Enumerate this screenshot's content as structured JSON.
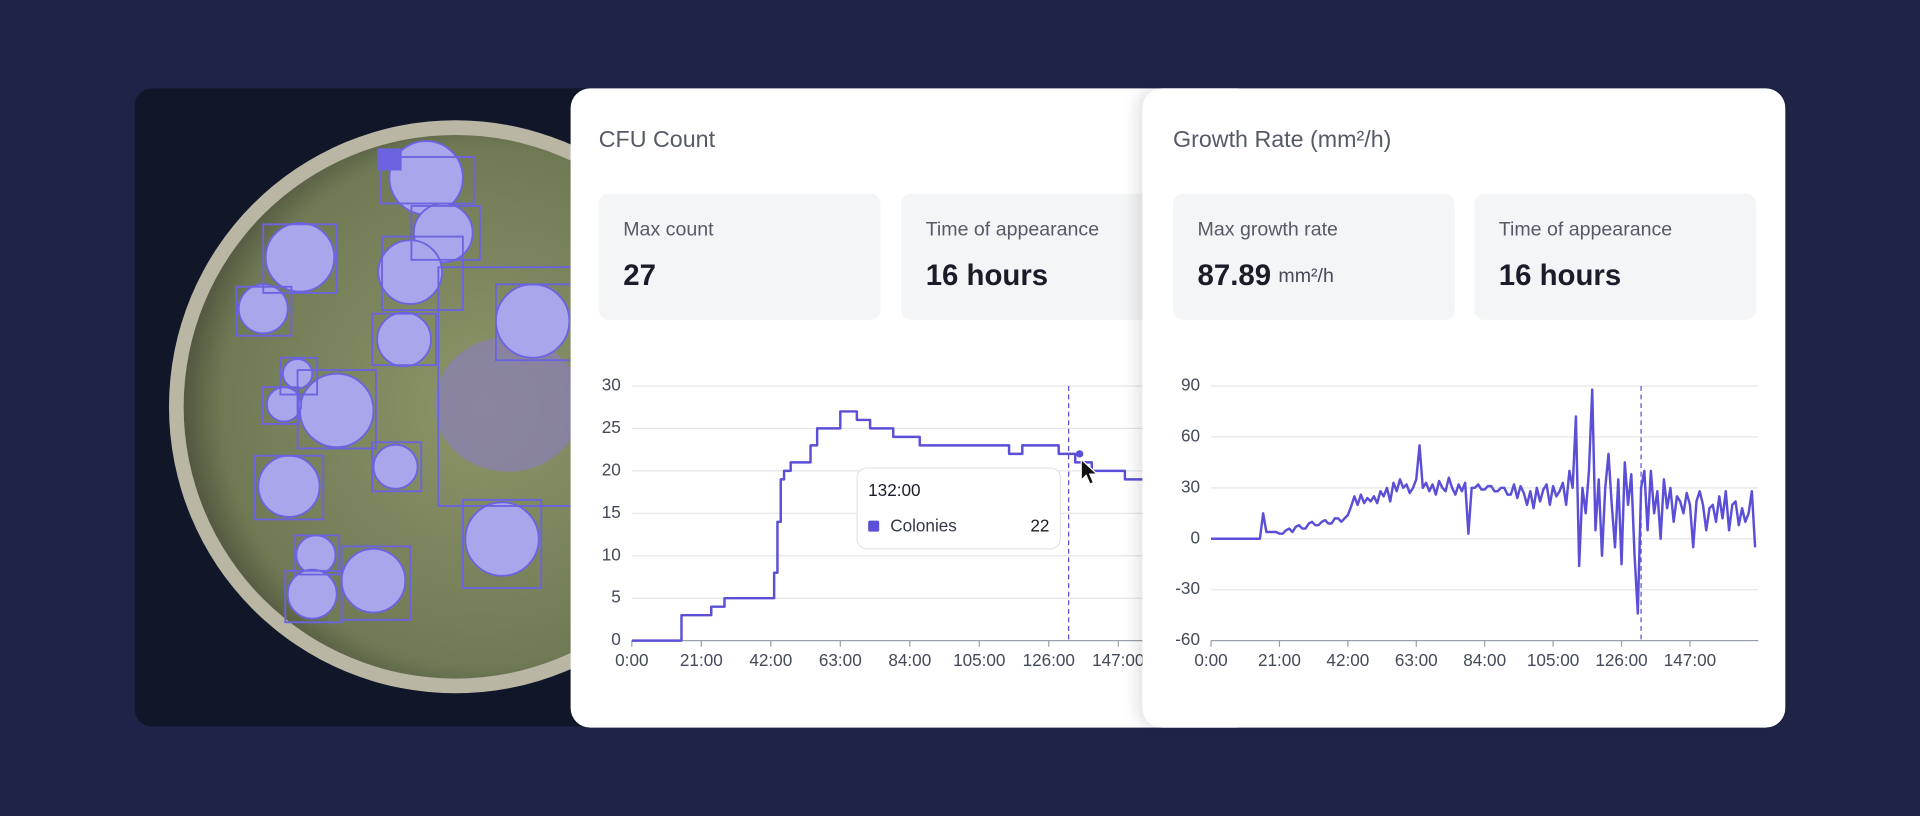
{
  "panels": [
    {
      "title": "CFU Count",
      "stats": [
        {
          "label": "Max count",
          "value": 27
        },
        {
          "label": "Time of appearance",
          "value": "16 hours"
        }
      ]
    },
    {
      "title": "Growth Rate (mm²/h)",
      "stats": [
        {
          "label": "Max growth rate",
          "value": 87.89,
          "unit": "mm²/h"
        },
        {
          "label": "Time of appearance",
          "value": "16 hours"
        }
      ]
    }
  ],
  "chart_data": [
    {
      "type": "line",
      "step": true,
      "x": [
        0,
        14,
        15,
        23,
        24,
        27,
        28,
        42,
        43,
        44,
        45,
        46,
        47,
        48,
        53,
        54,
        56,
        60,
        63,
        67,
        68,
        71,
        72,
        78,
        79,
        86,
        87,
        113,
        114,
        117,
        118,
        128,
        129,
        132,
        134,
        138,
        139,
        148,
        149,
        168
      ],
      "series": [
        {
          "name": "Colonies",
          "color": "#5a4fd6",
          "values": [
            0,
            0,
            3,
            3,
            4,
            4,
            5,
            5,
            8,
            14,
            19,
            20,
            20,
            21,
            21,
            23,
            25,
            25,
            27,
            27,
            26,
            26,
            25,
            25,
            24,
            24,
            23,
            23,
            22,
            22,
            23,
            23,
            22,
            22,
            21,
            21,
            20,
            20,
            19,
            19
          ]
        }
      ],
      "xlim": [
        0,
        168
      ],
      "xticks": [
        {
          "value": 0,
          "label": "0:00"
        },
        {
          "value": 21,
          "label": "21:00"
        },
        {
          "value": 42,
          "label": "42:00"
        },
        {
          "value": 63,
          "label": "63:00"
        },
        {
          "value": 84,
          "label": "84:00"
        },
        {
          "value": 105,
          "label": "105:00"
        },
        {
          "value": 126,
          "label": "126:00"
        },
        {
          "value": 147,
          "label": "147:00"
        }
      ],
      "ylim": [
        0,
        30
      ],
      "yticks": [
        0,
        5,
        10,
        15,
        20,
        25,
        30
      ],
      "grid": true,
      "cursor_x": 132,
      "tooltip": {
        "label": "132:00",
        "value": 22
      }
    },
    {
      "type": "line",
      "x": [
        0,
        1,
        2,
        3,
        4,
        5,
        6,
        7,
        8,
        9,
        10,
        11,
        12,
        13,
        14,
        15,
        16,
        17,
        18,
        19,
        20,
        21,
        22,
        23,
        24,
        25,
        26,
        27,
        28,
        29,
        30,
        31,
        32,
        33,
        34,
        35,
        36,
        37,
        38,
        39,
        40,
        41,
        42,
        43,
        44,
        45,
        46,
        47,
        48,
        49,
        50,
        51,
        52,
        53,
        54,
        55,
        56,
        57,
        58,
        59,
        60,
        61,
        62,
        63,
        64,
        65,
        66,
        67,
        68,
        69,
        70,
        71,
        72,
        73,
        74,
        75,
        76,
        77,
        78,
        79,
        80,
        81,
        82,
        83,
        84,
        85,
        86,
        87,
        88,
        89,
        90,
        91,
        92,
        93,
        94,
        95,
        96,
        97,
        98,
        99,
        100,
        101,
        102,
        103,
        104,
        105,
        106,
        107,
        108,
        109,
        110,
        111,
        112,
        113,
        114,
        115,
        116,
        117,
        118,
        119,
        120,
        121,
        122,
        123,
        124,
        125,
        126,
        127,
        128,
        129,
        130,
        131,
        132,
        133,
        134,
        135,
        136,
        137,
        138,
        139,
        140,
        141,
        142,
        143,
        144,
        145,
        146,
        147,
        148,
        149,
        150,
        151,
        152,
        153,
        154,
        155,
        156,
        157,
        158,
        159,
        160,
        161,
        162,
        163,
        164,
        165,
        166,
        167
      ],
      "series": [
        {
          "name": "Growth rate",
          "color": "#5a4fd6",
          "values": [
            0,
            0,
            0,
            0,
            0,
            0,
            0,
            0,
            0,
            0,
            0,
            0,
            0,
            0,
            0,
            0,
            15,
            4,
            4,
            4,
            4,
            3,
            3,
            5,
            6,
            4,
            7,
            8,
            6,
            6,
            9,
            10,
            8,
            8,
            10,
            11,
            9,
            9,
            12,
            12,
            10,
            12,
            14,
            19,
            25,
            20,
            26,
            21,
            24,
            22,
            25,
            21,
            28,
            25,
            30,
            22,
            33,
            28,
            35,
            30,
            32,
            27,
            30,
            35,
            55,
            30,
            33,
            28,
            32,
            26,
            34,
            30,
            28,
            36,
            30,
            26,
            32,
            28,
            33,
            3,
            30,
            30,
            32,
            29,
            29,
            31,
            31,
            28,
            28,
            30,
            30,
            26,
            26,
            32,
            24,
            31,
            27,
            20,
            28,
            18,
            30,
            22,
            29,
            32,
            20,
            31,
            25,
            28,
            33,
            20,
            40,
            30,
            72,
            -16,
            30,
            15,
            40,
            87.89,
            5,
            35,
            -10,
            30,
            50,
            20,
            -5,
            35,
            -15,
            45,
            20,
            38,
            -10,
            -44,
            30,
            40,
            5,
            40,
            15,
            28,
            0,
            35,
            18,
            30,
            10,
            25,
            22,
            15,
            27,
            20,
            -5,
            22,
            28,
            20,
            5,
            18,
            20,
            10,
            25,
            12,
            28,
            5,
            20,
            22,
            8,
            18,
            10,
            15,
            28,
            -5
          ]
        }
      ],
      "xlim": [
        0,
        168
      ],
      "xticks": [
        {
          "value": 0,
          "label": "0:00"
        },
        {
          "value": 21,
          "label": "21:00"
        },
        {
          "value": 42,
          "label": "42:00"
        },
        {
          "value": 63,
          "label": "63:00"
        },
        {
          "value": 84,
          "label": "84:00"
        },
        {
          "value": 105,
          "label": "105:00"
        },
        {
          "value": 126,
          "label": "126:00"
        },
        {
          "value": 147,
          "label": "147:00"
        }
      ],
      "ylim": [
        -60,
        90
      ],
      "yticks": [
        -60,
        -30,
        0,
        30,
        60,
        90
      ],
      "grid": true,
      "cursor_x": 132
    }
  ]
}
